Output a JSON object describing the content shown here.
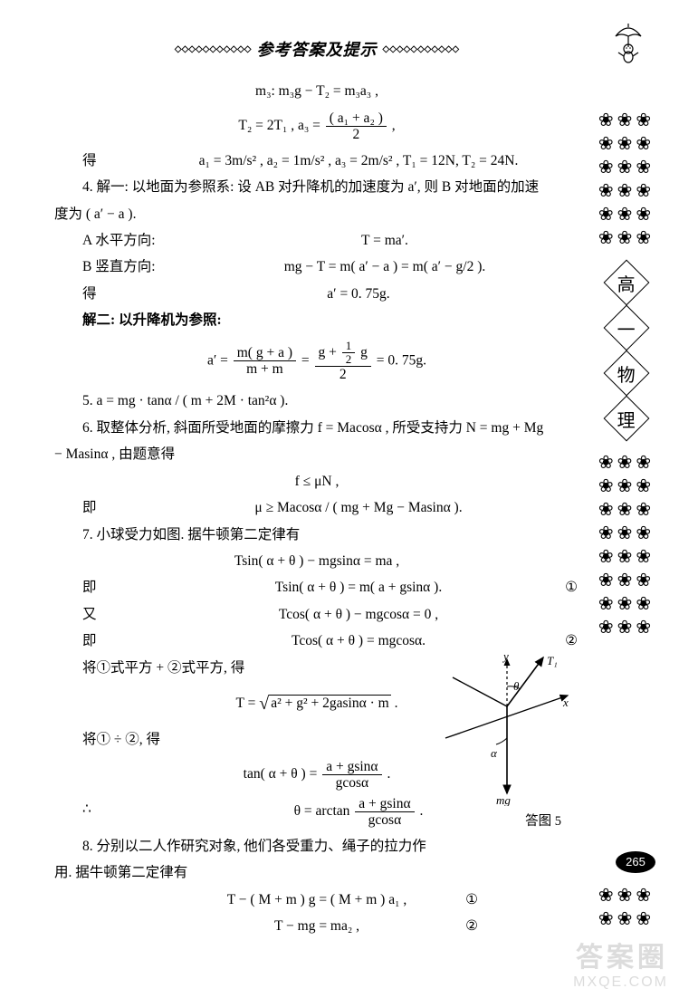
{
  "header": {
    "title": "参考答案及提示"
  },
  "decor": {
    "umbrella_icon": "☂",
    "flower_glyph": "❀"
  },
  "sidebar": {
    "flowers_top_rows": 6,
    "flowers_mid_rows": 8,
    "flowers_bottom_rows": 2,
    "subject_chars": [
      "高",
      "一",
      "物",
      "理"
    ]
  },
  "content": {
    "l01": "m₃: m₃g − T₂ = m₃a₃ ,",
    "l02_a": "T₂ = 2T₁ , a₃ = ",
    "l02_num": "( a₁ + a₂ )",
    "l02_den": "2",
    "l02_b": " ,",
    "l03_lead": "得",
    "l03_mid": "a₁ = 3m/s² , a₂ = 1m/s² , a₃ = 2m/s² , T₁ = 12N, T₂ = 24N.",
    "l04": "4. 解一: 以地面为参照系: 设 AB 对升降机的加速度为 a′, 则 B 对地面的加速",
    "l05": "度为 ( a′ − a ).",
    "l06_lead": "A 水平方向:",
    "l06_mid": "T = ma′.",
    "l07_lead": "B 竖直方向:",
    "l07_mid": "mg − T = m( a′ − a ) = m( a′ − g/2 ).",
    "l08_lead": "得",
    "l08_mid": "a′ = 0. 75g.",
    "l09": "解二: 以升降机为参照:",
    "l10_a": "a′ = ",
    "l10_num1": "m( g + a )",
    "l10_den1": "m + m",
    "l10_eq": " = ",
    "l10_num2_a": "g + ",
    "l10_num2_inner_num": "1",
    "l10_num2_inner_den": "2",
    "l10_num2_b": " g",
    "l10_den2": "2",
    "l10_end": " = 0. 75g.",
    "l11": "5.  a = mg · tanα / ( m + 2M · tan²α ).",
    "l12": "6.  取整体分析, 斜面所受地面的摩擦力 f = Macosα , 所受支持力 N = mg + Mg",
    "l13": "− Masinα , 由题意得",
    "l14": "f ≤ μN ,",
    "l15_lead": "即",
    "l15_mid": "μ ≥ Macosα / ( mg + Mg − Masinα ).",
    "l16": "7.  小球受力如图. 据牛顿第二定律有",
    "l17": "Tsin( α + θ ) − mgsinα = ma ,",
    "l18_lead": "即",
    "l18_mid": "Tsin( α + θ ) = m( a + gsinα ).",
    "l18_tag": "①",
    "l19_lead": "又",
    "l19_mid": "Tcos( α + θ ) − mgcosα = 0 ,",
    "l20_lead": "即",
    "l20_mid": "Tcos( α + θ ) = mgcosα.",
    "l20_tag": "②",
    "l21": "将①式平方 + ②式平方, 得",
    "l22_a": "T = ",
    "l22_root": "a² + g² + 2gasinα · m",
    "l22_b": ".",
    "l23": "将① ÷ ②, 得",
    "l24_a": "tan( α + θ ) = ",
    "l24_num": "a + gsinα",
    "l24_den": "gcosα",
    "l24_b": ".",
    "l25_lead": "∴",
    "l25_a": "θ = arctan ",
    "l25_num": "a + gsinα",
    "l25_den": "gcosα",
    "l25_b": ".",
    "l26": "8.  分别以二人作研究对象, 他们各受重力、绳子的拉力作",
    "l27": "用. 据牛顿第二定律有",
    "l28": "T − ( M + m ) g = ( M + m ) a₁ ,",
    "l28_tag": "①",
    "l29": "T − mg = ma₂ ,",
    "l29_tag": "②"
  },
  "diagram": {
    "label_y": "y",
    "label_T1": "T₁",
    "label_x": "x",
    "label_theta": "θ",
    "label_alpha": "α",
    "label_mg": "mg",
    "caption": "答图 5",
    "axis_color": "#000000",
    "t1_color": "#000000",
    "mg_color": "#000000",
    "stroke_width": 1.4
  },
  "pagenum": "265",
  "watermark": {
    "line1": "答案圈",
    "line2": "MXQE.COM"
  },
  "colors": {
    "text": "#000000",
    "bg": "#ffffff",
    "watermark": "#dcdcdc"
  }
}
